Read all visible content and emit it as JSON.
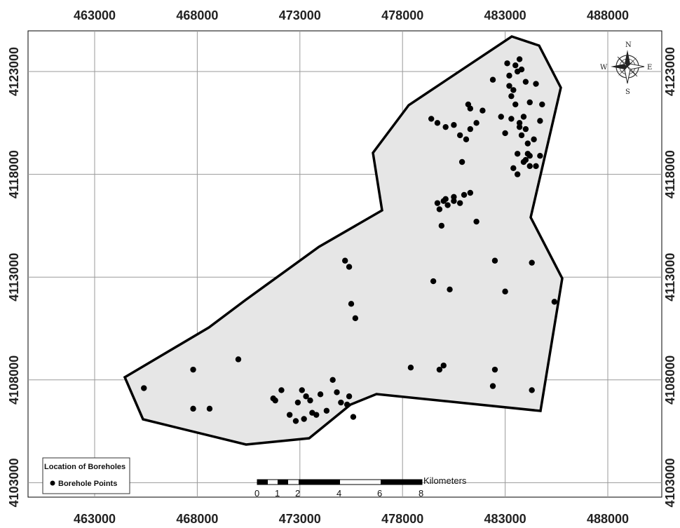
{
  "map": {
    "x_ticks": [
      "463000",
      "468000",
      "473000",
      "478000",
      "483000",
      "488000"
    ],
    "y_ticks": [
      "4123000",
      "4118000",
      "4113000",
      "4108000",
      "4103000"
    ],
    "study_area_fill": "#e6e6e6",
    "boundary_color": "#000000",
    "grid_color": "#9a9a9a",
    "point_color": "#000000"
  },
  "legend": {
    "title": "Location of Boreholes",
    "item_label": "Borehole Points"
  },
  "scale_bar": {
    "unit_label": "Kilometers",
    "tick_labels": [
      "0",
      "1",
      "2",
      "4",
      "6",
      "8"
    ]
  },
  "north_arrow": {
    "icon": "compass-rose-icon",
    "n": "N",
    "s": "S",
    "e": "E",
    "w": "W"
  },
  "boreholes": [
    [
      465400,
      4107600
    ],
    [
      467800,
      4108500
    ],
    [
      467800,
      4106600
    ],
    [
      468600,
      4106600
    ],
    [
      470000,
      4109000
    ],
    [
      471700,
      4107100
    ],
    [
      471800,
      4107000
    ],
    [
      472100,
      4107500
    ],
    [
      472500,
      4106300
    ],
    [
      472900,
      4106900
    ],
    [
      472800,
      4106000
    ],
    [
      473100,
      4107500
    ],
    [
      473200,
      4106100
    ],
    [
      473300,
      4107200
    ],
    [
      473500,
      4107000
    ],
    [
      473600,
      4106400
    ],
    [
      473800,
      4106300
    ],
    [
      474000,
      4107300
    ],
    [
      474300,
      4106500
    ],
    [
      474600,
      4108000
    ],
    [
      474800,
      4107400
    ],
    [
      475000,
      4106900
    ],
    [
      475300,
      4106800
    ],
    [
      475400,
      4107200
    ],
    [
      475600,
      4106200
    ],
    [
      475200,
      4113800
    ],
    [
      475400,
      4113500
    ],
    [
      475500,
      4111700
    ],
    [
      475700,
      4111000
    ],
    [
      478400,
      4108600
    ],
    [
      479500,
      4112800
    ],
    [
      479800,
      4108500
    ],
    [
      480000,
      4108700
    ],
    [
      480300,
      4112400
    ],
    [
      479700,
      4116600
    ],
    [
      479800,
      4116300
    ],
    [
      480000,
      4116700
    ],
    [
      480500,
      4116900
    ],
    [
      479900,
      4115500
    ],
    [
      480100,
      4116800
    ],
    [
      480200,
      4116500
    ],
    [
      480500,
      4116700
    ],
    [
      480800,
      4116600
    ],
    [
      481000,
      4117000
    ],
    [
      481600,
      4115700
    ],
    [
      479400,
      4120700
    ],
    [
      479700,
      4120500
    ],
    [
      480100,
      4120300
    ],
    [
      480500,
      4120400
    ],
    [
      480800,
      4119900
    ],
    [
      481100,
      4119700
    ],
    [
      481300,
      4120200
    ],
    [
      481600,
      4120500
    ],
    [
      481200,
      4121400
    ],
    [
      481300,
      4121200
    ],
    [
      481900,
      4121100
    ],
    [
      482400,
      4122600
    ],
    [
      480900,
      4118600
    ],
    [
      481300,
      4117100
    ],
    [
      482500,
      4113800
    ],
    [
      483000,
      4112300
    ],
    [
      482500,
      4108500
    ],
    [
      482400,
      4107700
    ],
    [
      482800,
      4120800
    ],
    [
      483000,
      4120000
    ],
    [
      483200,
      4122300
    ],
    [
      483300,
      4121800
    ],
    [
      483500,
      4121400
    ],
    [
      483600,
      4123000
    ],
    [
      483300,
      4120700
    ],
    [
      483700,
      4120500
    ],
    [
      483900,
      4120800
    ],
    [
      484000,
      4120200
    ],
    [
      483800,
      4119900
    ],
    [
      484100,
      4119500
    ],
    [
      483600,
      4119000
    ],
    [
      484000,
      4118700
    ],
    [
      484200,
      4118400
    ],
    [
      484500,
      4118400
    ],
    [
      483200,
      4122800
    ],
    [
      483500,
      4123300
    ],
    [
      483700,
      4123600
    ],
    [
      483800,
      4123100
    ],
    [
      484000,
      4122500
    ],
    [
      484500,
      4122400
    ],
    [
      484200,
      4121500
    ],
    [
      484800,
      4121400
    ],
    [
      484700,
      4120600
    ],
    [
      484400,
      4119700
    ],
    [
      484700,
      4118900
    ],
    [
      483400,
      4118300
    ],
    [
      483600,
      4118000
    ],
    [
      483900,
      4118600
    ],
    [
      484100,
      4119000
    ],
    [
      484300,
      4113700
    ],
    [
      485400,
      4111800
    ],
    [
      484300,
      4107500
    ],
    [
      483100,
      4123400
    ],
    [
      483400,
      4122100
    ],
    [
      483700,
      4120300
    ],
    [
      484200,
      4118900
    ]
  ]
}
